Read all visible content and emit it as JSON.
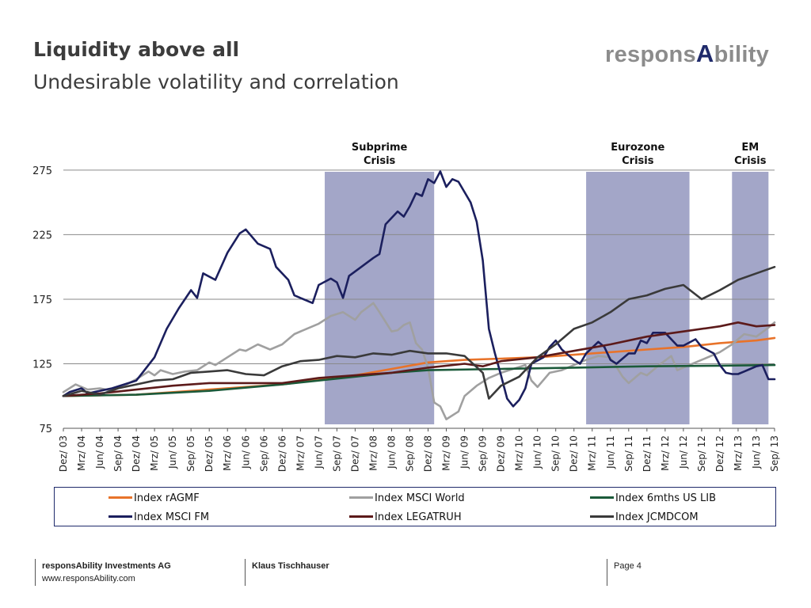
{
  "slide": {
    "title": "Liquidity above all",
    "subtitle": "Undesirable volatility and correlation",
    "logo_prefix": "respons",
    "logo_accent": "A",
    "logo_suffix": "bility"
  },
  "footer": {
    "company": "responsAbility Investments AG",
    "url": "www.responsAbility.com",
    "author": "Klaus Tischhauser",
    "page": "Page 4"
  },
  "chart_data": {
    "type": "line",
    "title": "",
    "xlabel": "",
    "ylabel": "",
    "ylim": [
      75,
      280
    ],
    "yticks": [
      75,
      125,
      175,
      225,
      275
    ],
    "grid": "horizontal",
    "legend_position": "bottom",
    "xlim": [
      "2003-12",
      "2013-09"
    ],
    "x_tick_labels": [
      "Dez/ 03",
      "Mrz/ 04",
      "Jun/ 04",
      "Sep/ 04",
      "Dez/ 04",
      "Mrz/ 05",
      "Jun/ 05",
      "Sep/ 05",
      "Dez/ 05",
      "Mrz/ 06",
      "Jun/ 06",
      "Sep/ 06",
      "Dez/ 06",
      "Mrz/ 07",
      "Jun/ 07",
      "Sep/ 07",
      "Dez/ 07",
      "Mrz/ 08",
      "Jun/ 08",
      "Sep/ 08",
      "Dez/ 08",
      "Mrz/ 09",
      "Jun/ 09",
      "Sep/ 09",
      "Dez/ 09",
      "Mrz/ 10",
      "Jun/ 10",
      "Sep/ 10",
      "Dez/ 10",
      "Mrz/ 11",
      "Jun/ 11",
      "Sep/ 11",
      "Dez/ 11",
      "Mrz/ 12",
      "Jun/ 12",
      "Sep/ 12",
      "Dez/ 12",
      "Mrz/ 13",
      "Jun/ 13",
      "Sep/ 13"
    ],
    "x_tick_dates": [
      "2003-12",
      "2004-03",
      "2004-06",
      "2004-09",
      "2004-12",
      "2005-03",
      "2005-06",
      "2005-09",
      "2005-12",
      "2006-03",
      "2006-06",
      "2006-09",
      "2006-12",
      "2007-03",
      "2007-06",
      "2007-09",
      "2007-12",
      "2008-03",
      "2008-06",
      "2008-09",
      "2008-12",
      "2009-03",
      "2009-06",
      "2009-09",
      "2009-12",
      "2010-03",
      "2010-06",
      "2010-09",
      "2010-12",
      "2011-03",
      "2011-06",
      "2011-09",
      "2011-12",
      "2012-03",
      "2012-06",
      "2012-09",
      "2012-12",
      "2013-03",
      "2013-06",
      "2013-09"
    ],
    "crisis_bands": [
      {
        "label_line1": "Subprime",
        "label_line2": "Crisis",
        "from": "2007-07",
        "to": "2009-01"
      },
      {
        "label_line1": "Eurozone",
        "label_line2": "Crisis",
        "from": "2011-02",
        "to": "2012-07"
      },
      {
        "label_line1": "EM",
        "label_line2": "Crisis",
        "from": "2013-02",
        "to": "2013-08"
      }
    ],
    "band_color": "#a3a6c8",
    "series": [
      {
        "name": "Index rAGMF",
        "color": "#e8732a",
        "points": [
          [
            "2003-12",
            100
          ],
          [
            "2004-12",
            101
          ],
          [
            "2005-12",
            105
          ],
          [
            "2006-12",
            109
          ],
          [
            "2007-12",
            116
          ],
          [
            "2008-06",
            121
          ],
          [
            "2008-12",
            126
          ],
          [
            "2009-06",
            128
          ],
          [
            "2009-12",
            129
          ],
          [
            "2010-06",
            130
          ],
          [
            "2010-12",
            132
          ],
          [
            "2011-06",
            134
          ],
          [
            "2011-12",
            136
          ],
          [
            "2012-06",
            138
          ],
          [
            "2012-12",
            141
          ],
          [
            "2013-06",
            143
          ],
          [
            "2013-09",
            145
          ]
        ]
      },
      {
        "name": "Index MSCI World",
        "color": "#a0a0a0",
        "points": [
          [
            "2003-12",
            103
          ],
          [
            "2004-02",
            109
          ],
          [
            "2004-04",
            105
          ],
          [
            "2004-06",
            106
          ],
          [
            "2004-08",
            104
          ],
          [
            "2004-10",
            108
          ],
          [
            "2004-12",
            113
          ],
          [
            "2005-02",
            119
          ],
          [
            "2005-03",
            116
          ],
          [
            "2005-04",
            120
          ],
          [
            "2005-06",
            117
          ],
          [
            "2005-08",
            119
          ],
          [
            "2005-10",
            120
          ],
          [
            "2005-12",
            126
          ],
          [
            "2006-01",
            124
          ],
          [
            "2006-03",
            130
          ],
          [
            "2006-05",
            136
          ],
          [
            "2006-06",
            135
          ],
          [
            "2006-08",
            140
          ],
          [
            "2006-10",
            136
          ],
          [
            "2006-12",
            140
          ],
          [
            "2007-02",
            148
          ],
          [
            "2007-04",
            152
          ],
          [
            "2007-06",
            156
          ],
          [
            "2007-08",
            162
          ],
          [
            "2007-10",
            165
          ],
          [
            "2007-12",
            159
          ],
          [
            "2008-01",
            165
          ],
          [
            "2008-03",
            172
          ],
          [
            "2008-04",
            165
          ],
          [
            "2008-06",
            150
          ],
          [
            "2008-07",
            151
          ],
          [
            "2008-08",
            155
          ],
          [
            "2008-09",
            157
          ],
          [
            "2008-10",
            141
          ],
          [
            "2008-11",
            136
          ],
          [
            "2008-12",
            122
          ],
          [
            "2009-01",
            95
          ],
          [
            "2009-02",
            92
          ],
          [
            "2009-03",
            82
          ],
          [
            "2009-05",
            88
          ],
          [
            "2009-06",
            100
          ],
          [
            "2009-08",
            108
          ],
          [
            "2009-10",
            114
          ],
          [
            "2009-12",
            118
          ],
          [
            "2010-02",
            121
          ],
          [
            "2010-04",
            124
          ],
          [
            "2010-05",
            112
          ],
          [
            "2010-06",
            107
          ],
          [
            "2010-08",
            118
          ],
          [
            "2010-10",
            120
          ],
          [
            "2010-12",
            124
          ],
          [
            "2011-02",
            128
          ],
          [
            "2011-04",
            131
          ],
          [
            "2011-06",
            130
          ],
          [
            "2011-08",
            115
          ],
          [
            "2011-09",
            110
          ],
          [
            "2011-11",
            118
          ],
          [
            "2011-12",
            116
          ],
          [
            "2012-02",
            124
          ],
          [
            "2012-04",
            131
          ],
          [
            "2012-05",
            120
          ],
          [
            "2012-07",
            124
          ],
          [
            "2012-09",
            128
          ],
          [
            "2012-12",
            134
          ],
          [
            "2013-02",
            140
          ],
          [
            "2013-04",
            148
          ],
          [
            "2013-06",
            146
          ],
          [
            "2013-08",
            153
          ],
          [
            "2013-09",
            157
          ]
        ]
      },
      {
        "name": "Index 6mths US LIB",
        "color": "#1b5a3a",
        "points": [
          [
            "2003-12",
            100
          ],
          [
            "2004-12",
            101
          ],
          [
            "2005-12",
            104
          ],
          [
            "2006-12",
            109
          ],
          [
            "2007-12",
            115
          ],
          [
            "2008-06",
            118
          ],
          [
            "2008-12",
            120
          ],
          [
            "2009-12",
            121
          ],
          [
            "2010-12",
            122
          ],
          [
            "2011-12",
            123
          ],
          [
            "2012-12",
            123.5
          ],
          [
            "2013-09",
            124
          ]
        ]
      },
      {
        "name": "Index MSCI FM",
        "color": "#1b1f5e",
        "points": [
          [
            "2003-12",
            100
          ],
          [
            "2004-01",
            103
          ],
          [
            "2004-03",
            106
          ],
          [
            "2004-04",
            102
          ],
          [
            "2004-06",
            104
          ],
          [
            "2004-08",
            106
          ],
          [
            "2004-10",
            109
          ],
          [
            "2004-12",
            112
          ],
          [
            "2005-01",
            118
          ],
          [
            "2005-03",
            130
          ],
          [
            "2005-05",
            152
          ],
          [
            "2005-07",
            168
          ],
          [
            "2005-09",
            182
          ],
          [
            "2005-10",
            176
          ],
          [
            "2005-11",
            195
          ],
          [
            "2006-01",
            190
          ],
          [
            "2006-03",
            211
          ],
          [
            "2006-05",
            226
          ],
          [
            "2006-06",
            229
          ],
          [
            "2006-08",
            218
          ],
          [
            "2006-10",
            214
          ],
          [
            "2006-11",
            200
          ],
          [
            "2007-01",
            190
          ],
          [
            "2007-02",
            178
          ],
          [
            "2007-04",
            174
          ],
          [
            "2007-05",
            172
          ],
          [
            "2007-06",
            186
          ],
          [
            "2007-08",
            191
          ],
          [
            "2007-09",
            188
          ],
          [
            "2007-10",
            176
          ],
          [
            "2007-11",
            193
          ],
          [
            "2008-01",
            200
          ],
          [
            "2008-03",
            207
          ],
          [
            "2008-04",
            210
          ],
          [
            "2008-05",
            233
          ],
          [
            "2008-07",
            243
          ],
          [
            "2008-08",
            239
          ],
          [
            "2008-09",
            247
          ],
          [
            "2008-10",
            257
          ],
          [
            "2008-11",
            255
          ],
          [
            "2008-12",
            268
          ],
          [
            "2009-01",
            265
          ],
          [
            "2009-02",
            274
          ],
          [
            "2009-03",
            262
          ],
          [
            "2009-04",
            268
          ],
          [
            "2009-05",
            266
          ],
          [
            "2009-07",
            250
          ],
          [
            "2009-08",
            235
          ],
          [
            "2009-09",
            205
          ],
          [
            "2009-10",
            152
          ],
          [
            "2009-11",
            133
          ],
          [
            "2009-12",
            116
          ],
          [
            "2010-01",
            98
          ],
          [
            "2010-02",
            92
          ],
          [
            "2010-03",
            97
          ],
          [
            "2010-04",
            106
          ],
          [
            "2010-05",
            125
          ],
          [
            "2010-07",
            130
          ],
          [
            "2010-08",
            138
          ],
          [
            "2010-09",
            143
          ],
          [
            "2010-10",
            136
          ],
          [
            "2010-12",
            128
          ],
          [
            "2011-01",
            125
          ],
          [
            "2011-02",
            133
          ],
          [
            "2011-04",
            142
          ],
          [
            "2011-05",
            138
          ],
          [
            "2011-06",
            128
          ],
          [
            "2011-07",
            125
          ],
          [
            "2011-09",
            133
          ],
          [
            "2011-10",
            133
          ],
          [
            "2011-11",
            143
          ],
          [
            "2011-12",
            141
          ],
          [
            "2012-01",
            149
          ],
          [
            "2012-03",
            149
          ],
          [
            "2012-05",
            139
          ],
          [
            "2012-06",
            139
          ],
          [
            "2012-08",
            144
          ],
          [
            "2012-09",
            138
          ],
          [
            "2012-11",
            133
          ],
          [
            "2012-12",
            124
          ],
          [
            "2013-01",
            118
          ],
          [
            "2013-02",
            117
          ],
          [
            "2013-03",
            117
          ],
          [
            "2013-04",
            119
          ],
          [
            "2013-05",
            121
          ],
          [
            "2013-06",
            123
          ],
          [
            "2013-07",
            124
          ],
          [
            "2013-08",
            113
          ],
          [
            "2013-09",
            113
          ]
        ]
      },
      {
        "name": "Index LEGATRUH",
        "color": "#5c1a1a",
        "points": [
          [
            "2003-12",
            100
          ],
          [
            "2004-06",
            102
          ],
          [
            "2004-12",
            105
          ],
          [
            "2005-06",
            108
          ],
          [
            "2005-12",
            110
          ],
          [
            "2006-06",
            110
          ],
          [
            "2006-12",
            110
          ],
          [
            "2007-06",
            114
          ],
          [
            "2007-12",
            116
          ],
          [
            "2008-06",
            118
          ],
          [
            "2008-12",
            122
          ],
          [
            "2009-06",
            125
          ],
          [
            "2009-09",
            123
          ],
          [
            "2009-12",
            127
          ],
          [
            "2010-06",
            130
          ],
          [
            "2010-12",
            135
          ],
          [
            "2011-06",
            140
          ],
          [
            "2011-12",
            146
          ],
          [
            "2012-06",
            150
          ],
          [
            "2012-12",
            154
          ],
          [
            "2013-03",
            157
          ],
          [
            "2013-06",
            154
          ],
          [
            "2013-09",
            155
          ]
        ]
      },
      {
        "name": "Index JCMDCOM",
        "color": "#3a3a3a",
        "points": [
          [
            "2003-12",
            100
          ],
          [
            "2004-03",
            104
          ],
          [
            "2004-06",
            101
          ],
          [
            "2004-09",
            106
          ],
          [
            "2004-12",
            109
          ],
          [
            "2005-03",
            112
          ],
          [
            "2005-06",
            113
          ],
          [
            "2005-09",
            118
          ],
          [
            "2005-12",
            119
          ],
          [
            "2006-03",
            120
          ],
          [
            "2006-06",
            117
          ],
          [
            "2006-09",
            116
          ],
          [
            "2006-12",
            123
          ],
          [
            "2007-03",
            127
          ],
          [
            "2007-06",
            128
          ],
          [
            "2007-09",
            131
          ],
          [
            "2007-12",
            130
          ],
          [
            "2008-03",
            133
          ],
          [
            "2008-06",
            132
          ],
          [
            "2008-09",
            135
          ],
          [
            "2008-12",
            133
          ],
          [
            "2009-03",
            133
          ],
          [
            "2009-06",
            131
          ],
          [
            "2009-09",
            118
          ],
          [
            "2009-10",
            98
          ],
          [
            "2009-12",
            108
          ],
          [
            "2010-03",
            115
          ],
          [
            "2010-06",
            130
          ],
          [
            "2010-09",
            140
          ],
          [
            "2010-12",
            152
          ],
          [
            "2011-03",
            157
          ],
          [
            "2011-06",
            165
          ],
          [
            "2011-09",
            175
          ],
          [
            "2011-12",
            178
          ],
          [
            "2012-03",
            183
          ],
          [
            "2012-06",
            186
          ],
          [
            "2012-09",
            175
          ],
          [
            "2012-12",
            182
          ],
          [
            "2013-03",
            190
          ],
          [
            "2013-06",
            195
          ],
          [
            "2013-09",
            200
          ]
        ]
      }
    ]
  }
}
